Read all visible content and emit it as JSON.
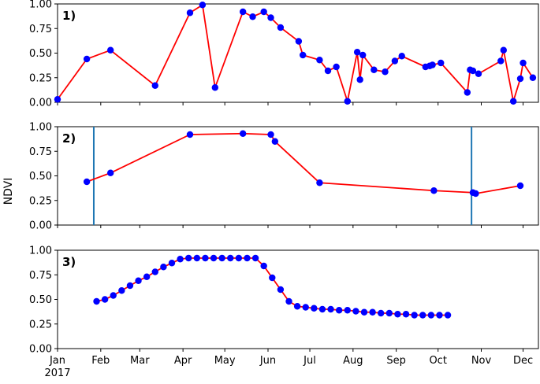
{
  "figure": {
    "ylabel": "NDVI"
  },
  "chart_data": [
    {
      "type": "line",
      "panel_label": "1)",
      "ylim": [
        0,
        1
      ],
      "yticks": [
        "0.00",
        "0.25",
        "0.50",
        "0.75",
        "1.00"
      ],
      "line_color": "#ff0000",
      "marker_color": "#0000ff",
      "x": [
        "2017-01-01",
        "2017-01-22",
        "2017-02-08",
        "2017-03-12",
        "2017-04-06",
        "2017-04-15",
        "2017-04-24",
        "2017-05-14",
        "2017-05-21",
        "2017-05-29",
        "2017-06-03",
        "2017-06-10",
        "2017-06-23",
        "2017-06-26",
        "2017-07-08",
        "2017-07-14",
        "2017-07-20",
        "2017-07-28",
        "2017-08-04",
        "2017-08-06",
        "2017-08-08",
        "2017-08-16",
        "2017-08-24",
        "2017-08-31",
        "2017-09-05",
        "2017-09-22",
        "2017-09-25",
        "2017-09-27",
        "2017-10-03",
        "2017-10-22",
        "2017-10-24",
        "2017-10-26",
        "2017-10-30",
        "2017-11-15",
        "2017-11-17",
        "2017-11-24",
        "2017-11-29",
        "2017-12-01",
        "2017-12-08"
      ],
      "y": [
        0.03,
        0.44,
        0.53,
        0.17,
        0.91,
        0.99,
        0.15,
        0.92,
        0.87,
        0.92,
        0.86,
        0.76,
        0.62,
        0.48,
        0.43,
        0.32,
        0.36,
        0.01,
        0.51,
        0.23,
        0.48,
        0.33,
        0.31,
        0.42,
        0.47,
        0.36,
        0.37,
        0.38,
        0.4,
        0.1,
        0.33,
        0.32,
        0.29,
        0.42,
        0.53,
        0.01,
        0.24,
        0.4,
        0.25
      ]
    },
    {
      "type": "line",
      "panel_label": "2)",
      "ylim": [
        0,
        1
      ],
      "yticks": [
        "0.00",
        "0.25",
        "0.50",
        "0.75",
        "1.00"
      ],
      "line_color": "#ff0000",
      "marker_color": "#0000ff",
      "vlines": [
        "2017-01-27",
        "2017-10-25"
      ],
      "vline_color": "#1f77b4",
      "x": [
        "2017-01-22",
        "2017-02-08",
        "2017-04-06",
        "2017-05-14",
        "2017-06-03",
        "2017-06-06",
        "2017-07-08",
        "2017-09-28",
        "2017-10-26",
        "2017-10-28",
        "2017-11-29"
      ],
      "y": [
        0.44,
        0.53,
        0.92,
        0.93,
        0.92,
        0.85,
        0.43,
        0.35,
        0.33,
        0.32,
        0.4
      ]
    },
    {
      "type": "line",
      "panel_label": "3)",
      "ylim": [
        0,
        1
      ],
      "yticks": [
        "0.00",
        "0.25",
        "0.50",
        "0.75",
        "1.00"
      ],
      "line_color": "#ff0000",
      "marker_color": "#0000ff",
      "x_start": "2017-01-29",
      "x_step_days": 6,
      "y": [
        0.48,
        0.5,
        0.54,
        0.59,
        0.64,
        0.69,
        0.73,
        0.78,
        0.83,
        0.87,
        0.91,
        0.92,
        0.92,
        0.92,
        0.92,
        0.92,
        0.92,
        0.92,
        0.92,
        0.92,
        0.84,
        0.72,
        0.6,
        0.48,
        0.43,
        0.42,
        0.41,
        0.4,
        0.4,
        0.39,
        0.39,
        0.38,
        0.37,
        0.37,
        0.36,
        0.36,
        0.35,
        0.35,
        0.34,
        0.34,
        0.34,
        0.34,
        0.34
      ]
    }
  ],
  "x_axis": {
    "ticks": [
      {
        "date": "2017-01-01",
        "label": "Jan",
        "sublabel": "2017"
      },
      {
        "date": "2017-02-01",
        "label": "Feb"
      },
      {
        "date": "2017-03-01",
        "label": "Mar"
      },
      {
        "date": "2017-04-01",
        "label": "Apr"
      },
      {
        "date": "2017-05-01",
        "label": "May"
      },
      {
        "date": "2017-06-01",
        "label": "Jun"
      },
      {
        "date": "2017-07-01",
        "label": "Jul"
      },
      {
        "date": "2017-08-01",
        "label": "Aug"
      },
      {
        "date": "2017-09-01",
        "label": "Sep"
      },
      {
        "date": "2017-10-01",
        "label": "Oct"
      },
      {
        "date": "2017-11-01",
        "label": "Nov"
      },
      {
        "date": "2017-12-01",
        "label": "Dec"
      }
    ],
    "range": [
      "2017-01-01",
      "2017-12-12"
    ]
  }
}
